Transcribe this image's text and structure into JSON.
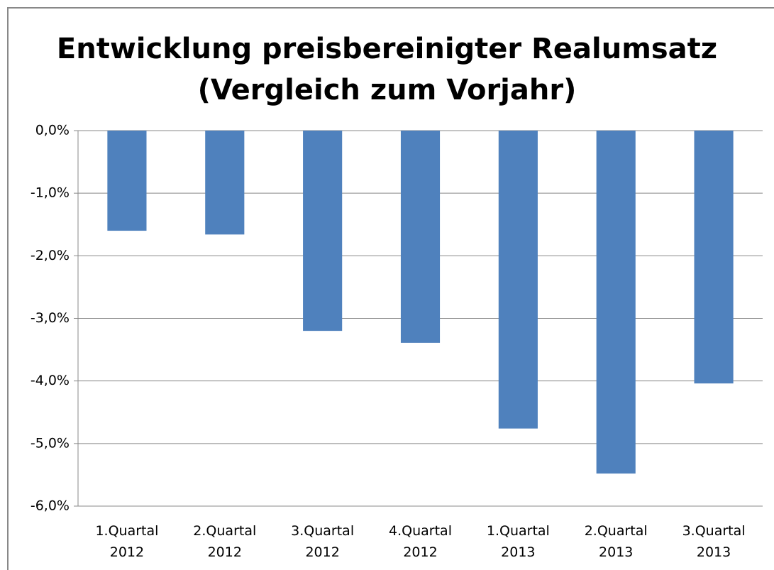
{
  "chart_data": {
    "type": "bar",
    "title": "Entwicklung preisbereinigter Realumsatz\n(Vergleich zum Vorjahr)",
    "categories": [
      "1.Quartal\n2012",
      "2.Quartal\n2012",
      "3.Quartal\n2012",
      "4.Quartal\n2012",
      "1.Quartal\n2013",
      "2.Quartal\n2013",
      "3.Quartal\n2013"
    ],
    "values": [
      -1.6,
      -1.66,
      -3.2,
      -3.39,
      -4.76,
      -5.48,
      -4.04
    ],
    "color": "#4f81bd",
    "ylim": [
      -6,
      0
    ],
    "yticks": [
      {
        "value": 0,
        "label": "0,0%"
      },
      {
        "value": -1,
        "label": "-1,0%"
      },
      {
        "value": -2,
        "label": "-2,0%"
      },
      {
        "value": -3,
        "label": "-3,0%"
      },
      {
        "value": -4,
        "label": "-4,0%"
      },
      {
        "value": -5,
        "label": "-5,0%"
      },
      {
        "value": -6,
        "label": "-6,0%"
      }
    ],
    "grid": true
  }
}
